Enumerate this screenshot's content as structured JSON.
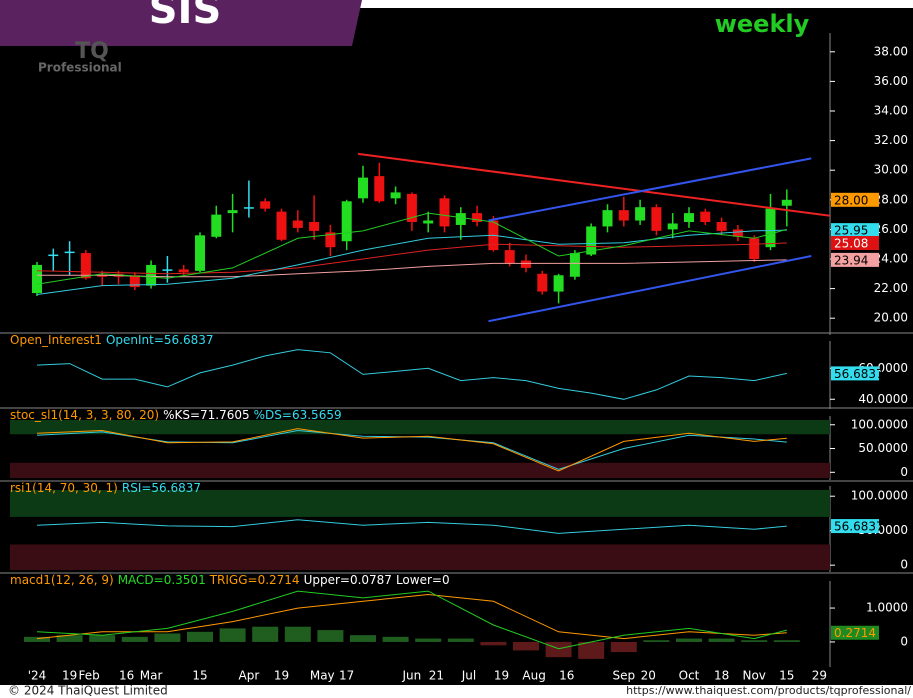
{
  "header": {
    "symbol": "SIS",
    "interval": "weekly",
    "logo": "TQ",
    "logo_sub": "Professional"
  },
  "footer": {
    "copyright": "© 2024  ThaiQuest Limited",
    "url": "https://www.thaiquest.com/products/tqprofessional/"
  },
  "x_axis": {
    "ticks": [
      {
        "value": 0,
        "label": "'24"
      },
      {
        "value": 2,
        "label": "19"
      },
      {
        "value": 3.2,
        "label": "Feb"
      },
      {
        "value": 5.5,
        "label": "16"
      },
      {
        "value": 7,
        "label": "Mar"
      },
      {
        "value": 10,
        "label": "15"
      },
      {
        "value": 13,
        "label": "Apr"
      },
      {
        "value": 15,
        "label": "19"
      },
      {
        "value": 17.5,
        "label": "May"
      },
      {
        "value": 19,
        "label": "17"
      },
      {
        "value": 23,
        "label": "Jun"
      },
      {
        "value": 24.5,
        "label": "21"
      },
      {
        "value": 26.5,
        "label": "Jul"
      },
      {
        "value": 28.5,
        "label": "19"
      },
      {
        "value": 30.5,
        "label": "Aug"
      },
      {
        "value": 32.5,
        "label": "16"
      },
      {
        "value": 36,
        "label": "Sep"
      },
      {
        "value": 37.5,
        "label": "20"
      },
      {
        "value": 40,
        "label": "Oct"
      },
      {
        "value": 42,
        "label": "18"
      },
      {
        "value": 44,
        "label": "Nov"
      },
      {
        "value": 46,
        "label": "15"
      },
      {
        "value": 48,
        "label": "29"
      }
    ]
  },
  "chart_data": [
    {
      "type": "candlestick",
      "ylim": [
        19,
        39
      ],
      "yticks": [
        {
          "value": 20,
          "label": "20.00"
        },
        {
          "value": 22,
          "label": "22.00"
        },
        {
          "value": 24,
          "label": "24.00"
        },
        {
          "value": 26,
          "label": "26.00"
        },
        {
          "value": 28,
          "label": "28.00"
        },
        {
          "value": 30,
          "label": "30.00"
        },
        {
          "value": 32,
          "label": "32.00"
        },
        {
          "value": 34,
          "label": "34.00"
        },
        {
          "value": 36,
          "label": "36.00"
        },
        {
          "value": 38,
          "label": "38.00"
        }
      ],
      "colors": {
        "up": "#22dd22",
        "down": "#ee1111",
        "unchanged": "#33ddee"
      },
      "open": [
        21.7,
        24.3,
        24.5,
        24.4,
        22.9,
        23.0,
        22.9,
        22.2,
        23.3,
        23.3,
        23.2,
        25.5,
        27.1,
        27.5,
        27.9,
        27.2,
        26.6,
        26.5,
        25.8,
        25.2,
        28.1,
        29.6,
        28.1,
        28.4,
        26.4,
        28.1,
        26.3,
        27.1,
        26.6,
        24.6,
        23.9,
        23.0,
        21.8,
        22.8,
        24.3,
        26.2,
        27.3,
        26.6,
        27.5,
        26.0,
        26.5,
        27.2,
        26.5,
        26.0,
        25.4,
        24.8,
        27.6
      ],
      "high": [
        23.8,
        24.7,
        25.2,
        24.6,
        23.2,
        23.2,
        23.1,
        23.9,
        24.2,
        23.6,
        25.8,
        27.6,
        28.4,
        29.3,
        28.1,
        27.4,
        27.3,
        28.3,
        26.3,
        28.0,
        30.3,
        30.5,
        28.9,
        28.5,
        27.2,
        28.3,
        27.5,
        27.6,
        26.9,
        25.1,
        24.3,
        23.2,
        23.0,
        24.6,
        26.4,
        27.7,
        28.2,
        28.0,
        27.7,
        27.1,
        27.5,
        27.4,
        26.8,
        26.3,
        25.6,
        28.4,
        28.7
      ],
      "low": [
        21.5,
        23.2,
        22.9,
        22.6,
        22.2,
        22.3,
        21.9,
        22.0,
        22.4,
        22.9,
        23.1,
        25.4,
        25.8,
        26.8,
        27.2,
        25.2,
        25.8,
        25.3,
        24.2,
        24.6,
        27.8,
        27.8,
        27.7,
        25.9,
        25.8,
        25.8,
        25.3,
        26.2,
        24.5,
        23.5,
        23.1,
        21.6,
        21.0,
        22.6,
        24.2,
        25.8,
        26.2,
        26.3,
        25.6,
        25.4,
        26.1,
        26.3,
        25.6,
        25.2,
        23.8,
        24.6,
        26.2
      ],
      "close": [
        23.6,
        24.3,
        24.5,
        22.7,
        22.8,
        22.8,
        22.1,
        23.6,
        23.3,
        23.1,
        25.6,
        27.0,
        27.3,
        27.5,
        27.4,
        25.3,
        26.1,
        25.9,
        24.8,
        27.9,
        29.5,
        27.9,
        28.5,
        26.5,
        26.6,
        26.2,
        27.1,
        26.5,
        24.6,
        23.7,
        23.4,
        21.8,
        22.9,
        24.4,
        26.2,
        27.3,
        26.6,
        27.5,
        25.9,
        26.4,
        27.1,
        26.5,
        25.9,
        25.5,
        24.0,
        27.4,
        28.0
      ],
      "series": [
        {
          "color": "#f2a0a0",
          "width": 1,
          "x": [
            0,
            4,
            8,
            12,
            16,
            20,
            24,
            28,
            32,
            36,
            40,
            44,
            46
          ],
          "values": [
            22.9,
            22.9,
            22.8,
            22.8,
            23.0,
            23.2,
            23.5,
            23.7,
            23.7,
            23.7,
            23.8,
            23.9,
            23.94
          ]
        },
        {
          "color": "#dd2222",
          "width": 1,
          "x": [
            0,
            4,
            8,
            12,
            16,
            20,
            24,
            28,
            32,
            36,
            40,
            44,
            46
          ],
          "values": [
            23.2,
            23.1,
            23.0,
            23.1,
            23.4,
            24.0,
            24.6,
            25.0,
            24.9,
            24.8,
            24.9,
            25.0,
            25.08
          ]
        },
        {
          "color": "#33ccdd",
          "width": 1,
          "x": [
            0,
            4,
            8,
            12,
            16,
            20,
            24,
            28,
            32,
            36,
            40,
            44,
            46
          ],
          "values": [
            21.6,
            22.2,
            22.3,
            22.7,
            23.6,
            24.6,
            25.4,
            25.6,
            25.0,
            25.1,
            25.6,
            25.9,
            25.95
          ]
        },
        {
          "color": "#22cc22",
          "width": 1,
          "x": [
            0,
            4,
            8,
            12,
            16,
            20,
            24,
            28,
            32,
            36,
            40,
            44,
            46
          ],
          "values": [
            22.3,
            23.0,
            22.7,
            23.4,
            25.4,
            25.9,
            27.1,
            26.5,
            24.2,
            24.9,
            25.9,
            25.4,
            26.0
          ]
        },
        {
          "color": "#ee2222",
          "width": 2,
          "x": [
            19.7,
            49.5
          ],
          "values": [
            31.1,
            26.8
          ]
        },
        {
          "color": "#3355ee",
          "width": 2,
          "x": [
            27.7,
            47.5
          ],
          "values": [
            26.6,
            30.8
          ]
        },
        {
          "color": "#3355ee",
          "width": 2,
          "x": [
            27.7,
            47.5
          ],
          "values": [
            19.8,
            24.2
          ]
        }
      ],
      "tags": [
        {
          "value": 28,
          "label": "28.00",
          "color": "#ff9900",
          "text_color": "#000"
        },
        {
          "value": 25.95,
          "color": "#33ddee",
          "text_color": "#000"
        },
        {
          "value": 25.08,
          "color": "#dd1111",
          "text_color": "#fff"
        },
        {
          "value": 23.94,
          "color": "#f2a0a0",
          "text_color": "#000"
        }
      ]
    },
    {
      "type": "line",
      "title_parts": [
        {
          "text": "Open_Interest1",
          "color": "#ff9900"
        },
        {
          "text": "OpenInt=56.6837",
          "color": "#33ddee"
        }
      ],
      "ylim": [
        35,
        75
      ],
      "yticks": [
        {
          "value": 40,
          "label": "40.0000"
        },
        {
          "value": 60,
          "label": "60.0000"
        }
      ],
      "series": [
        {
          "color": "#33ccdd",
          "width": 1,
          "x": [
            0,
            2,
            4,
            6,
            8,
            10,
            12,
            14,
            16,
            18,
            20,
            22,
            24,
            26,
            28,
            30,
            32,
            34,
            36,
            38,
            40,
            42,
            44,
            46
          ],
          "values": [
            62,
            63,
            53,
            53,
            48,
            57,
            62,
            68,
            72,
            70,
            56,
            58,
            60,
            52,
            54,
            52,
            47,
            44,
            40,
            46,
            55,
            54,
            52,
            56.6837
          ]
        }
      ],
      "tags": [
        {
          "value": 56.6837,
          "color": "#33ddee",
          "text_color": "#000"
        }
      ]
    },
    {
      "type": "line",
      "title_parts": [
        {
          "text": "stoc_sl1(14, 3, 3, 80, 20)",
          "color": "#ff9900"
        },
        {
          "text": "%KS=71.7605",
          "color": "#ffffff"
        },
        {
          "text": "%DS=63.5659",
          "color": "#33ddee"
        }
      ],
      "ylim": [
        -12,
        110
      ],
      "yticks": [
        {
          "value": 100,
          "label": "100.0000"
        },
        {
          "value": 50,
          "label": "50.0000"
        },
        0
      ],
      "bands": {
        "upper": 80,
        "lower": 20,
        "upper_color": "#0c3a14",
        "lower_color": "#3a0c14"
      },
      "series": [
        {
          "color": "#33ccdd",
          "width": 1,
          "x": [
            0,
            4,
            8,
            12,
            16,
            20,
            24,
            28,
            32,
            36,
            40,
            44,
            46
          ],
          "values": [
            78,
            85,
            64,
            62,
            88,
            76,
            74,
            62,
            6,
            50,
            78,
            70,
            63.5659
          ]
        },
        {
          "color": "#ff9900",
          "width": 1,
          "x": [
            0,
            4,
            8,
            12,
            16,
            20,
            24,
            28,
            32,
            36,
            40,
            44,
            46
          ],
          "values": [
            82,
            88,
            62,
            64,
            92,
            72,
            76,
            60,
            3,
            65,
            82,
            65,
            71.7605
          ]
        }
      ]
    },
    {
      "type": "line",
      "title_parts": [
        {
          "text": "rsi1(14, 70, 30, 1)",
          "color": "#ff9900"
        },
        {
          "text": "RSI=56.6837",
          "color": "#33ddee"
        }
      ],
      "ylim": [
        -7,
        109
      ],
      "yticks": [
        {
          "value": 100,
          "label": "100.0000"
        },
        {
          "value": 50,
          "label": "50.0000"
        },
        0
      ],
      "bands": {
        "upper": 70,
        "lower": 30,
        "upper_color": "#0c3a14",
        "lower_color": "#3a0c14"
      },
      "series": [
        {
          "color": "#33ccdd",
          "width": 1,
          "x": [
            0,
            4,
            8,
            12,
            16,
            20,
            24,
            28,
            32,
            36,
            40,
            44,
            46
          ],
          "values": [
            58,
            62,
            57,
            56,
            66,
            58,
            62,
            58,
            46,
            52,
            58,
            52,
            56.6837
          ]
        }
      ],
      "tags": [
        {
          "value": 56.6837,
          "color": "#33ddee",
          "text_color": "#000"
        }
      ]
    },
    {
      "type": "line",
      "title_parts": [
        {
          "text": "macd1(12, 26, 9)",
          "color": "#ff9900"
        },
        {
          "text": "MACD=0.3501",
          "color": "#22dd22"
        },
        {
          "text": "TRIGG=0.2714",
          "color": "#ff9900"
        },
        {
          "text": "Upper=0.0787",
          "color": "#ffffff"
        },
        {
          "text": "Lower=0",
          "color": "#ffffff"
        }
      ],
      "ylim": [
        -0.68,
        1.68
      ],
      "yticks": [
        {
          "value": 1,
          "label": "1.0000"
        },
        0
      ],
      "histogram": {
        "up_color": "#1f5e1f",
        "down_color": "#5e1a1a",
        "x": [
          0,
          2,
          4,
          6,
          8,
          10,
          12,
          14,
          16,
          18,
          20,
          22,
          24,
          26,
          28,
          30,
          32,
          34,
          36,
          38,
          40,
          42,
          44,
          46
        ],
        "values": [
          0.15,
          0.2,
          0.2,
          0.15,
          0.25,
          0.3,
          0.4,
          0.45,
          0.45,
          0.35,
          0.2,
          0.15,
          0.1,
          0.1,
          -0.1,
          -0.25,
          -0.45,
          -0.5,
          -0.3,
          0.05,
          0.1,
          0.1,
          0.05,
          0.05
        ]
      },
      "series": [
        {
          "color": "#ff9900",
          "width": 1,
          "x": [
            0,
            4,
            8,
            12,
            16,
            20,
            24,
            28,
            32,
            36,
            40,
            44,
            46
          ],
          "values": [
            0.1,
            0.3,
            0.3,
            0.6,
            1.0,
            1.2,
            1.4,
            1.2,
            0.3,
            0.1,
            0.3,
            0.2,
            0.2714
          ]
        },
        {
          "color": "#22cc22",
          "width": 1,
          "x": [
            0,
            4,
            8,
            12,
            16,
            20,
            24,
            28,
            32,
            36,
            40,
            44,
            46
          ],
          "values": [
            0.3,
            0.2,
            0.4,
            0.9,
            1.5,
            1.3,
            1.5,
            0.5,
            -0.2,
            0.2,
            0.4,
            0.1,
            0.3501
          ]
        }
      ],
      "tags": [
        {
          "value": 0.2714,
          "color": "#1f8a1f",
          "text_color": "#ff9900"
        }
      ]
    }
  ]
}
